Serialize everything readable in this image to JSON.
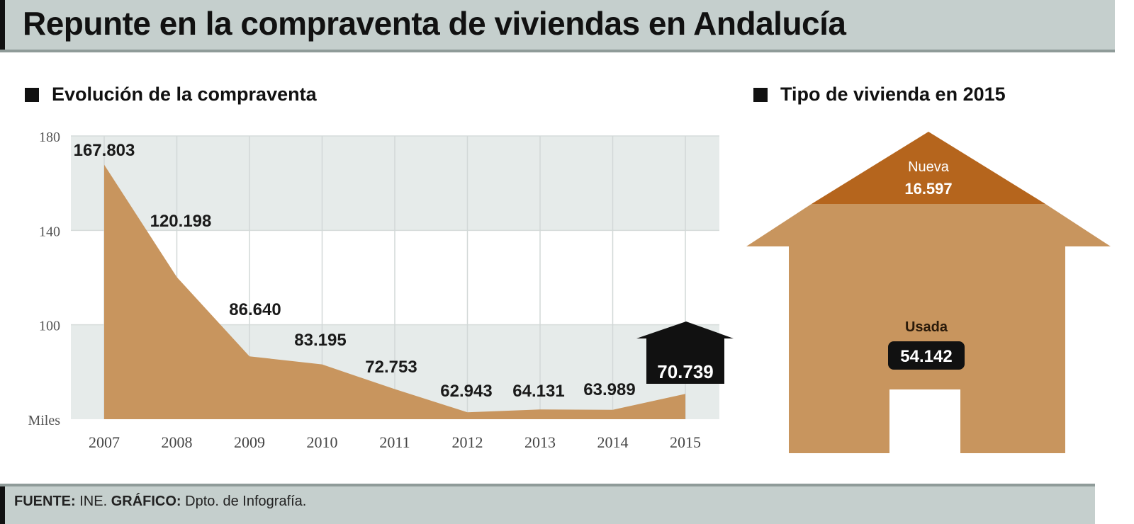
{
  "header": {
    "title": "Repunte en la compraventa de viviendas en Andalucía"
  },
  "sections": {
    "left_title": "Evolución de la compraventa",
    "right_title": "Tipo de vivienda en 2015"
  },
  "footer": {
    "source_label": "FUENTE:",
    "source_value": " INE. ",
    "graphic_label": "GRÁFICO:",
    "graphic_value": " Dpto. de Infografía."
  },
  "colors": {
    "area_fill": "#c8955e",
    "roof_fill": "#b5651d",
    "house_fill": "#c8955e",
    "grid_band": "#e6ebea",
    "title_bar": "#c5cfcd",
    "highlight": "#111111"
  },
  "house": {
    "new_label": "Nueva",
    "new_value": "16.597",
    "used_label": "Usada",
    "used_value": "54.142"
  },
  "chart_data": [
    {
      "type": "area",
      "title": "Evolución de la compraventa",
      "xlabel": "",
      "ylabel": "Miles",
      "categories": [
        "2007",
        "2008",
        "2009",
        "2010",
        "2011",
        "2012",
        "2013",
        "2014",
        "2015"
      ],
      "values": [
        167803,
        120198,
        86640,
        83195,
        72753,
        62943,
        64131,
        63989,
        70739
      ],
      "value_labels": [
        "167.803",
        "120.198",
        "86.640",
        "83.195",
        "72.753",
        "62.943",
        "64.131",
        "63.989",
        "70.739"
      ],
      "y_ticks": [
        "180",
        "140",
        "100",
        "Miles"
      ],
      "ylim": [
        60,
        180
      ],
      "y_unit": "Miles",
      "grid": true,
      "highlight": {
        "category": "2015",
        "value_label": "70.739",
        "style": "black house badge"
      }
    },
    {
      "type": "pie",
      "title": "Tipo de vivienda en 2015",
      "categories": [
        "Nueva",
        "Usada"
      ],
      "values": [
        16597,
        54142
      ],
      "value_labels": [
        "16.597",
        "54.142"
      ],
      "style": "house pictogram (roof = Nueva, body = Usada)"
    }
  ]
}
